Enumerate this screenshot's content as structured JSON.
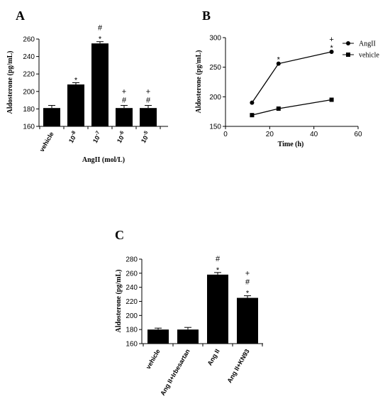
{
  "chart_data": [
    {
      "panel": "A",
      "type": "bar",
      "ylabel": "Aldosterone (pg/mL)",
      "xlabel": "AngII (mol/L)",
      "ylim": [
        160,
        260
      ],
      "yticks": [
        160,
        180,
        200,
        220,
        240,
        260
      ],
      "categories": [
        {
          "base": "vehicle",
          "exp": ""
        },
        {
          "base": "10",
          "exp": "-8"
        },
        {
          "base": "10",
          "exp": "-7"
        },
        {
          "base": "10",
          "exp": "-6"
        },
        {
          "base": "10",
          "exp": "-5"
        }
      ],
      "values": [
        181,
        208,
        255,
        181,
        181
      ],
      "errors": [
        3,
        2,
        2,
        3,
        3
      ],
      "annotations": [
        [],
        [
          "*"
        ],
        [
          "*",
          "#"
        ],
        [
          "#",
          "+"
        ],
        [
          "#",
          "+"
        ]
      ]
    },
    {
      "panel": "B",
      "type": "line",
      "ylabel": "Aldosterone (pg/mL)",
      "xlabel": "Time (h)",
      "xlim": [
        0,
        60
      ],
      "xticks": [
        0,
        20,
        40,
        60
      ],
      "ylim": [
        150,
        300
      ],
      "yticks": [
        150,
        200,
        250,
        300
      ],
      "series": [
        {
          "name": "AngII",
          "marker": "circle",
          "x": [
            12,
            24,
            48
          ],
          "values": [
            190,
            256,
            276
          ],
          "annotations": [
            [],
            [
              "*"
            ],
            [
              "*",
              "+"
            ]
          ]
        },
        {
          "name": "vehicle",
          "marker": "square",
          "x": [
            12,
            24,
            48
          ],
          "values": [
            169,
            180,
            195
          ],
          "annotations": [
            [],
            [],
            []
          ]
        }
      ]
    },
    {
      "panel": "C",
      "type": "bar",
      "ylabel": "Aldosterone (pg/mL)",
      "xlabel": "",
      "ylim": [
        160,
        280
      ],
      "yticks": [
        160,
        180,
        200,
        220,
        240,
        260,
        280
      ],
      "categories": [
        {
          "base": "vehicle",
          "exp": ""
        },
        {
          "base": "Ang II+Irbesartan",
          "exp": ""
        },
        {
          "base": "Ang II",
          "exp": ""
        },
        {
          "base": "Ang II+KN93",
          "exp": ""
        }
      ],
      "values": [
        180,
        180,
        258,
        225
      ],
      "errors": [
        2,
        3,
        3,
        3
      ],
      "annotations": [
        [],
        [],
        [
          "*",
          "#"
        ],
        [
          "*",
          "#",
          "+"
        ]
      ]
    }
  ]
}
